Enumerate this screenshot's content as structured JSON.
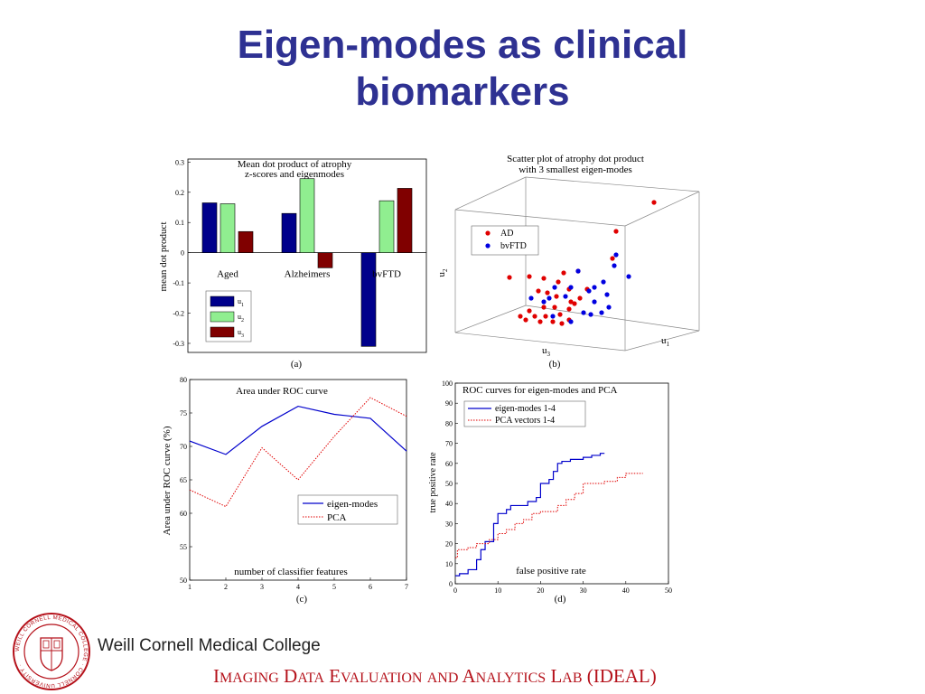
{
  "slide": {
    "title_line1": "Eigen-modes as clinical",
    "title_line2": "biomarkers",
    "college_name": "Weill Cornell Medical College",
    "lab_name": "Imaging Data Evaluation and Analytics Lab (IDEAL)",
    "logo_ring_text": "WEILL CORNELL MEDICAL COLLEGE · CORNELL UNIVERSITY ·",
    "colors": {
      "title": "#2e3192",
      "lab": "#b5121b",
      "logo": "#b5121b"
    }
  },
  "chart_data": [
    {
      "type": "bar",
      "title": "Mean dot product of atrophy z-scores and eigenmodes",
      "title_line1": "Mean dot product of atrophy",
      "title_line2": "z-scores and eigenmodes",
      "ylabel": "mean dot product",
      "caption": "(a)",
      "categories": [
        "Aged",
        "Alzheimers",
        "bvFTD"
      ],
      "series": [
        {
          "name": "u1",
          "color": "#00008b",
          "values": [
            0.165,
            0.13,
            -0.31
          ]
        },
        {
          "name": "u2",
          "color": "#90ee90",
          "values": [
            0.162,
            0.245,
            0.172
          ]
        },
        {
          "name": "u3",
          "color": "#800000",
          "values": [
            0.07,
            -0.05,
            0.213
          ]
        }
      ],
      "ylim": [
        -0.33,
        0.31
      ],
      "yticks": [
        "0.3",
        "0.2",
        "0.1",
        "0",
        "-0.1",
        "-0.2",
        "-0.3"
      ],
      "legend_position": "bottom-left"
    },
    {
      "type": "scatter",
      "title": "Scatter plot of atrophy dot product with 3 smallest eigen-modes",
      "title_line1": "Scatter plot of atrophy dot product",
      "title_line2": "with 3 smallest eigen-modes",
      "caption": "(b)",
      "axis_labels": {
        "u1": "u",
        "u1_sub": "1",
        "u2": "u",
        "u2_sub": "2",
        "u3": "u",
        "u3_sub": "3"
      },
      "legend_position": "top-left",
      "series": [
        {
          "name": "AD",
          "color": "#e00000"
        },
        {
          "name": "bvFTD",
          "color": "#0000e0"
        }
      ]
    },
    {
      "type": "line",
      "title": "Area under ROC curve",
      "xlabel": "number of classifier features",
      "ylabel": "Area under ROC curve (%)",
      "caption": "(c)",
      "x": [
        1,
        2,
        3,
        4,
        5,
        6,
        7
      ],
      "xticks": [
        "1",
        "2",
        "3",
        "4",
        "5",
        "6",
        "7"
      ],
      "yticks": [
        "80",
        "75",
        "70",
        "65",
        "60",
        "55",
        "50"
      ],
      "xlim": [
        1,
        7
      ],
      "ylim": [
        50,
        80
      ],
      "series": [
        {
          "name": "eigen-modes",
          "color": "#0000cc",
          "style": "solid",
          "values": [
            70.8,
            68.8,
            73.0,
            76.0,
            74.8,
            74.2,
            69.3
          ]
        },
        {
          "name": "PCA",
          "color": "#e00000",
          "style": "dotted",
          "values": [
            63.5,
            61.0,
            69.8,
            65.0,
            71.5,
            77.3,
            74.5
          ]
        }
      ],
      "legend_position": "center-right"
    },
    {
      "type": "line",
      "title": "ROC curves for eigen-modes and PCA",
      "xlabel": "false positive rate",
      "ylabel": "true positive rate",
      "caption": "(d)",
      "xticks": [
        "0",
        "10",
        "20",
        "30",
        "40",
        "50"
      ],
      "yticks": [
        "100",
        "90",
        "80",
        "70",
        "60",
        "50",
        "40",
        "30",
        "20",
        "10",
        "0"
      ],
      "xlim": [
        0,
        50
      ],
      "ylim": [
        0,
        100
      ],
      "series": [
        {
          "name": "eigen-modes 1-4",
          "color": "#0000cc",
          "style": "solid",
          "x": [
            0,
            1,
            1,
            3,
            3,
            5,
            5,
            6,
            6,
            7,
            7,
            9,
            9,
            10,
            10,
            12,
            12,
            13,
            13,
            17,
            17,
            19,
            19,
            20,
            20,
            22,
            22,
            23,
            23,
            24,
            24,
            25,
            25,
            27,
            27,
            30,
            30,
            32,
            32,
            34,
            34,
            35
          ],
          "y": [
            4,
            4,
            5,
            5,
            7,
            7,
            12,
            12,
            17,
            17,
            21,
            21,
            30,
            30,
            35,
            35,
            37,
            37,
            39,
            39,
            41,
            41,
            43,
            43,
            50,
            50,
            52,
            52,
            56,
            56,
            60,
            60,
            61,
            61,
            62,
            62,
            63,
            63,
            64,
            64,
            65,
            65
          ]
        },
        {
          "name": "PCA vectors 1-4",
          "color": "#e00000",
          "style": "dotted",
          "x": [
            0,
            0.5,
            0.5,
            3,
            3,
            5,
            5,
            8,
            8,
            10,
            10,
            12,
            12,
            14,
            14,
            16,
            16,
            18,
            18,
            20,
            20,
            24,
            24,
            26,
            26,
            28,
            28,
            30,
            30,
            35,
            35,
            38,
            38,
            40,
            40,
            44
          ],
          "y": [
            13,
            13,
            17,
            17,
            18,
            18,
            20,
            20,
            22,
            22,
            25,
            25,
            27,
            27,
            30,
            30,
            32,
            32,
            35,
            35,
            36,
            36,
            39,
            39,
            42,
            42,
            45,
            45,
            50,
            50,
            51,
            51,
            53,
            53,
            55,
            55
          ]
        }
      ],
      "legend_position": "top-left"
    }
  ]
}
